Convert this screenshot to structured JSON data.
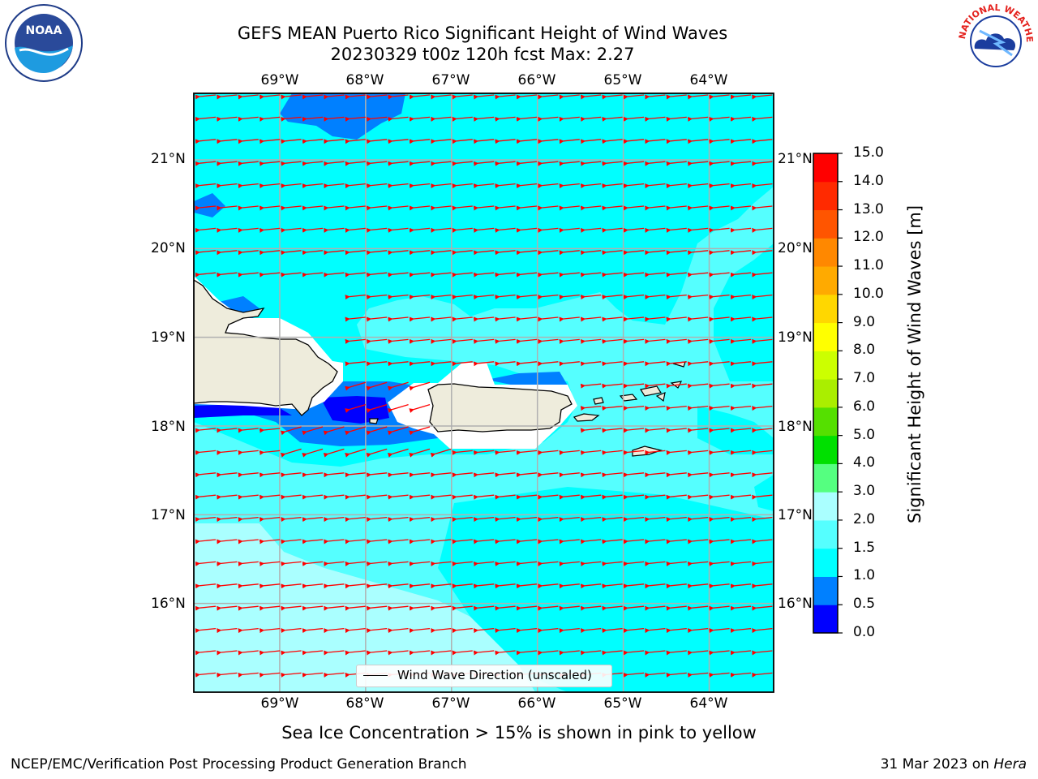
{
  "header": {
    "title_line1": "GEFS MEAN Puerto Rico Significant Height of Wind Waves",
    "title_line2": "20230329 t00z 120h fcst   Max: 2.27"
  },
  "logos": {
    "left": "NOAA",
    "right": "NATIONAL WEATHER SERVICE"
  },
  "map": {
    "lon_labels": [
      "69°W",
      "68°W",
      "67°W",
      "66°W",
      "65°W",
      "64°W"
    ],
    "lat_labels": [
      "21°N",
      "20°N",
      "19°N",
      "18°N",
      "17°N",
      "16°N"
    ],
    "lon_range": [
      -70.0,
      -63.25
    ],
    "lat_range": [
      15.0,
      21.75
    ],
    "land_color": "#eeecdc",
    "ocean_base_color": "#00ffff",
    "arrow_color": "#ff0000",
    "arrow_direction": "westward (easterly waves)",
    "grid": true
  },
  "legend": {
    "label": "Wind Wave Direction (unscaled)"
  },
  "colorbar": {
    "label": "Significant Height of Wind Waves [m]",
    "ticks": [
      "0.0",
      "0.5",
      "1.0",
      "1.5",
      "2.0",
      "3.0",
      "4.0",
      "5.0",
      "6.0",
      "7.0",
      "8.0",
      "9.0",
      "10.0",
      "11.0",
      "12.0",
      "13.0",
      "14.0",
      "15.0"
    ],
    "colors": [
      "#0000ff",
      "#0080ff",
      "#00ffff",
      "#55ffff",
      "#aaffff",
      "#55ff80",
      "#00e000",
      "#55e000",
      "#aaee00",
      "#ccff00",
      "#ffff00",
      "#ffd700",
      "#ffaa00",
      "#ff8800",
      "#ff5500",
      "#ff2a00",
      "#ff0000"
    ]
  },
  "notes": {
    "ice": "Sea Ice Concentration > 15% is shown in pink to yellow",
    "footer_left": "NCEP/EMC/Verification Post Processing Product Generation Branch",
    "footer_date": "31 Mar 2023 on ",
    "footer_machine": "Hera"
  }
}
